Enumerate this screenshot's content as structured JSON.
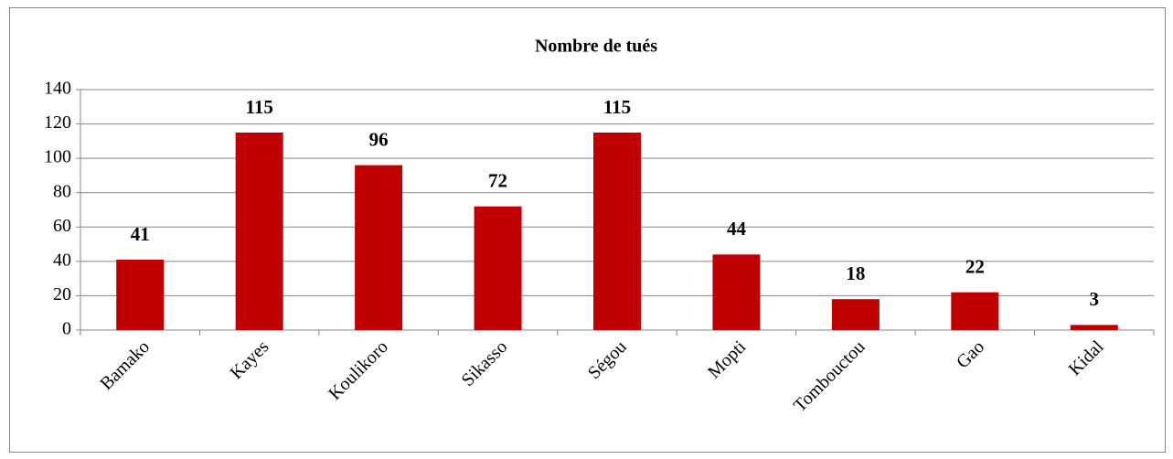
{
  "chart_data": {
    "type": "bar",
    "title": "Nombre de tués",
    "categories": [
      "Bamako",
      "Kayes",
      "Koulikoro",
      "Sikasso",
      "Ségou",
      "Mopti",
      "Tombouctou",
      "Gao",
      "Kidal"
    ],
    "values": [
      41,
      115,
      96,
      72,
      115,
      44,
      18,
      22,
      3
    ],
    "color": "#c00000",
    "ylim": [
      0,
      140
    ],
    "yticks": [
      0,
      20,
      40,
      60,
      80,
      100,
      120,
      140
    ],
    "grid": true
  }
}
